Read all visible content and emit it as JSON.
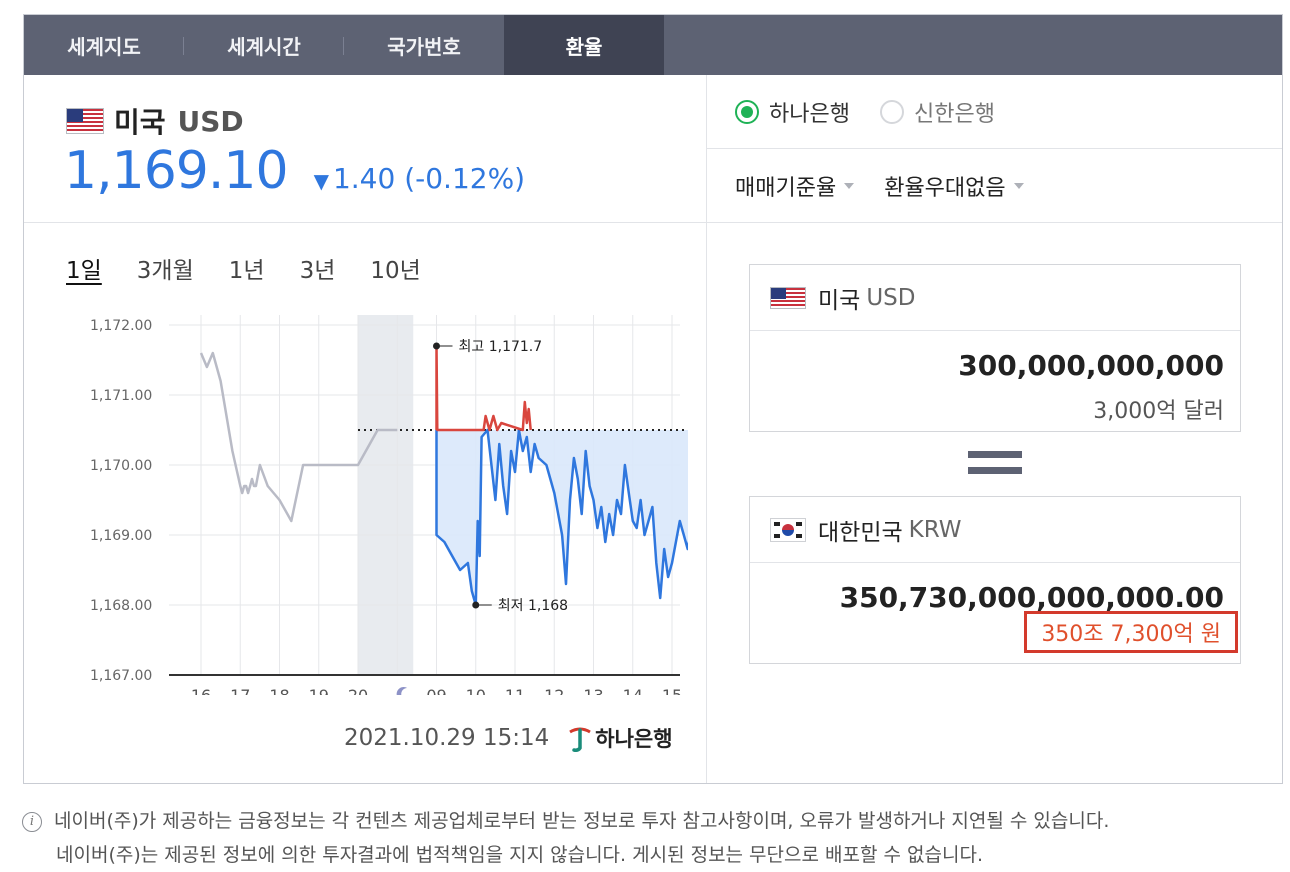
{
  "tabs": [
    {
      "label": "세계지도",
      "active": false
    },
    {
      "label": "세계시간",
      "active": false
    },
    {
      "label": "국가번호",
      "active": false
    },
    {
      "label": "환율",
      "active": true
    }
  ],
  "header": {
    "country": "미국",
    "code": "USD",
    "rate": "1,169.10",
    "change": "1.40 (-0.12%)",
    "change_direction": "down"
  },
  "periods": [
    {
      "label": "1일",
      "active": true
    },
    {
      "label": "3개월",
      "active": false
    },
    {
      "label": "1년",
      "active": false
    },
    {
      "label": "3년",
      "active": false
    },
    {
      "label": "10년",
      "active": false
    }
  ],
  "chart_data": {
    "type": "line",
    "ylim": [
      1167.0,
      1172.0
    ],
    "y_ticks": [
      "1,172.00",
      "1,171.00",
      "1,170.00",
      "1,169.00",
      "1,168.00",
      "1,167.00"
    ],
    "x_ticks": [
      "16",
      "17",
      "18",
      "19",
      "20",
      "moon",
      "09",
      "10",
      "11",
      "12",
      "13",
      "14",
      "15"
    ],
    "reference_value": 1170.5,
    "annotations": {
      "high_label": "최고 1,171.7",
      "high_value": 1171.7,
      "low_label": "최저 1,168",
      "low_value": 1168.0
    },
    "series": [
      {
        "kind": "previous-day",
        "color": "#b9bbc6",
        "x": [
          0.0,
          0.15,
          0.3,
          0.5,
          0.8,
          1.0,
          1.05,
          1.1,
          1.15,
          1.2,
          1.25,
          1.3,
          1.35,
          1.4,
          1.5,
          1.7,
          2.0,
          2.3,
          2.6,
          3.0,
          3.5,
          4.0,
          4.5,
          4.8,
          5.0
        ],
        "y": [
          1171.6,
          1171.4,
          1171.6,
          1171.2,
          1170.2,
          1169.7,
          1169.6,
          1169.7,
          1169.7,
          1169.6,
          1169.7,
          1169.8,
          1169.7,
          1169.7,
          1170.0,
          1169.7,
          1169.5,
          1169.2,
          1170.0,
          1170.0,
          1170.0,
          1170.0,
          1170.5,
          1170.5,
          1170.5
        ]
      },
      {
        "kind": "today",
        "color": "#2f77de",
        "x": [
          6.0,
          6.0,
          6.2,
          6.4,
          6.6,
          6.8,
          6.9,
          7.0,
          7.05,
          7.1,
          7.15,
          7.3,
          7.5,
          7.6,
          7.7,
          7.8,
          7.9,
          8.0,
          8.1,
          8.2,
          8.3,
          8.4,
          8.5,
          8.6,
          8.8,
          9.0,
          9.2,
          9.3,
          9.4,
          9.5,
          9.6,
          9.7,
          9.8,
          9.9,
          10.0,
          10.1,
          10.2,
          10.3,
          10.4,
          10.5,
          10.6,
          10.7,
          10.8,
          10.9,
          11.0,
          11.1,
          11.2,
          11.3,
          11.4,
          11.5,
          11.6,
          11.7,
          11.8,
          11.9,
          12.0,
          12.1,
          12.2,
          12.3,
          12.4,
          12.5,
          12.6,
          12.7,
          12.8
        ],
        "y": [
          1170.5,
          1169.0,
          1168.9,
          1168.7,
          1168.5,
          1168.6,
          1168.2,
          1168.0,
          1169.2,
          1168.7,
          1170.4,
          1170.5,
          1169.5,
          1170.3,
          1169.7,
          1169.3,
          1170.2,
          1169.9,
          1170.5,
          1170.2,
          1170.4,
          1169.9,
          1170.3,
          1170.1,
          1170.0,
          1169.6,
          1169.0,
          1168.3,
          1169.5,
          1170.1,
          1169.8,
          1169.3,
          1170.2,
          1169.7,
          1169.5,
          1169.1,
          1169.4,
          1168.9,
          1169.3,
          1169.0,
          1169.5,
          1169.3,
          1170.0,
          1169.6,
          1169.2,
          1169.1,
          1169.5,
          1169.0,
          1169.2,
          1169.4,
          1168.6,
          1168.1,
          1168.8,
          1168.4,
          1168.6,
          1168.9,
          1169.2,
          1169.0,
          1168.8,
          1169.1,
          1169.0,
          1169.2,
          1169.3
        ]
      },
      {
        "kind": "above-reference",
        "color": "#d9463e",
        "x": [
          6.0,
          6.0,
          6.02,
          7.2,
          7.25,
          7.35,
          7.45,
          7.55,
          7.65,
          8.2,
          8.25,
          8.3,
          8.35,
          8.4
        ],
        "y": [
          1170.5,
          1171.7,
          1170.5,
          1170.5,
          1170.7,
          1170.5,
          1170.7,
          1170.5,
          1170.6,
          1170.5,
          1170.9,
          1170.6,
          1170.8,
          1170.5
        ]
      }
    ]
  },
  "footer": {
    "date": "2021.10.29 15:14",
    "bank_logo_text": "하나은행"
  },
  "banks": [
    {
      "label": "하나은행",
      "selected": true
    },
    {
      "label": "신한은행",
      "selected": false
    }
  ],
  "options": [
    {
      "label": "매매기준율"
    },
    {
      "label": "환율우대없음"
    }
  ],
  "from": {
    "country": "미국",
    "code": "USD",
    "amount": "300,000,000,000",
    "amount_words": "3,000억 달러"
  },
  "to": {
    "country": "대한민국",
    "code": "KRW",
    "amount": "350,730,000,000,000.00",
    "amount_words": "350조 7,300억 원"
  },
  "notice": {
    "line1": "네이버(주)가 제공하는 금융정보는 각 컨텐츠 제공업체로부터 받는 정보로 투자 참고사항이며, 오류가 발생하거나 지연될 수 있습니다.",
    "line2": "네이버(주)는 제공된 정보에 의한 투자결과에 법적책임을 지지 않습니다. 게시된 정보는 무단으로 배포할 수 없습니다."
  },
  "colors": {
    "accent_blue": "#2f77de",
    "tab_bg": "#5d6273",
    "tab_active_bg": "#3f4353",
    "radio_green": "#1fb256",
    "highlight_red": "#d33a2c"
  }
}
